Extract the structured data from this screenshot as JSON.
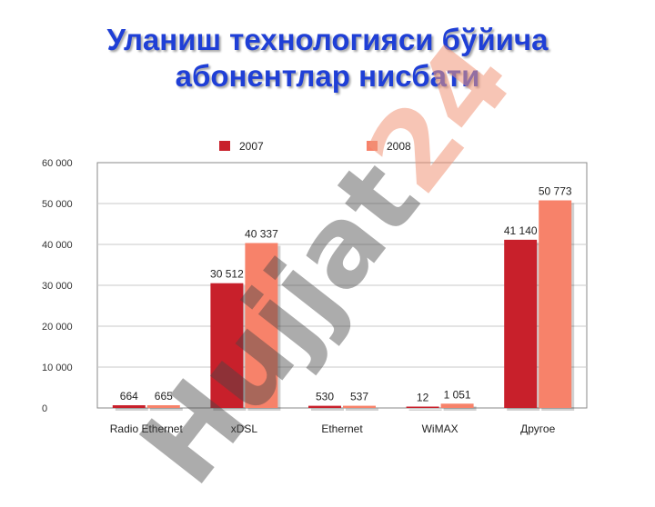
{
  "title": {
    "line1": "Уланиш технологияси бўйича",
    "line2": "абонентлар нисбати"
  },
  "watermark": {
    "part1": "Hujjat",
    "part2": "24"
  },
  "colors": {
    "series_2007": "#c8202b",
    "series_2008": "#f7826a",
    "title": "#1f3fd6"
  },
  "chart_data": {
    "type": "bar",
    "categories": [
      "Radio Ethernet",
      "xDSL",
      "Ethernet",
      "WiMAX",
      "Другое"
    ],
    "series": [
      {
        "name": "2007",
        "values": [
          664,
          30512,
          530,
          12,
          41140
        ],
        "labels": [
          "664",
          "30 512",
          "530",
          "12",
          "41 140"
        ]
      },
      {
        "name": "2008",
        "values": [
          665,
          40337,
          537,
          1051,
          50773
        ],
        "labels": [
          "665",
          "40 337",
          "537",
          "1 051",
          "50 773"
        ]
      }
    ],
    "yticks": [
      "0",
      "10 000",
      "20 000",
      "30 000",
      "40 000",
      "50 000",
      "60 000"
    ],
    "ylim": [
      0,
      60000
    ],
    "grid": true,
    "legend": "top"
  }
}
